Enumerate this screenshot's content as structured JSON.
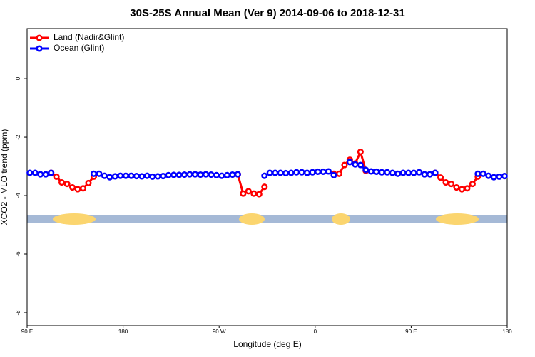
{
  "chart_data": {
    "type": "line",
    "title": "30S-25S Annual Mean (Ver 9)   2014-09-06 to 2018-12-31",
    "x_label": "Longitude (deg E)",
    "y_label": "XCO2 - MLO trend (ppm)",
    "xlim": [
      90,
      540
    ],
    "ylim": [
      -8.44,
      1.71
    ],
    "xticks": [
      {
        "value": 90,
        "label": "90 E"
      },
      180,
      {
        "value": 270,
        "label": "90 W"
      },
      {
        "value": 360,
        "label": "0"
      },
      {
        "value": 450,
        "label": "90 E"
      },
      {
        "value": 540,
        "label": "180"
      }
    ],
    "yticks": [
      0,
      -2,
      -4,
      -6,
      -8
    ],
    "legend": "topleft",
    "x": [
      92.5,
      97.5,
      102.5,
      107.5,
      112.5,
      117.5,
      122.5,
      127.5,
      132.5,
      137.5,
      142.5,
      147.5,
      152.5,
      157.5,
      162.5,
      167.5,
      172.5,
      177.5,
      182.5,
      187.5,
      192.5,
      197.5,
      202.5,
      207.5,
      212.5,
      217.5,
      222.5,
      227.5,
      232.5,
      237.5,
      242.5,
      247.5,
      252.5,
      257.5,
      262.5,
      267.5,
      272.5,
      277.5,
      282.5,
      287.5,
      292.5,
      297.5,
      302.5,
      307.5,
      312.5,
      317.5,
      322.5,
      327.5,
      332.5,
      337.5,
      342.5,
      347.5,
      352.5,
      357.5,
      362.5,
      367.5,
      372.5,
      377.5,
      382.5,
      387.5,
      392.5,
      397.5,
      402.5,
      407.5,
      412.5,
      417.5,
      422.5,
      427.5,
      432.5,
      437.5,
      442.5,
      447.5,
      452.5,
      457.5,
      462.5,
      467.5,
      472.5,
      477.5,
      482.5,
      487.5,
      492.5,
      497.5,
      502.5,
      507.5,
      512.5,
      517.5,
      522.5,
      527.5,
      532.5,
      537.5
    ],
    "series": [
      {
        "name": "Land (Nadir&Glint)",
        "color": "#ff0000",
        "values": [
          null,
          null,
          null,
          null,
          -3.22,
          -3.35,
          -3.55,
          -3.6,
          -3.72,
          -3.78,
          -3.75,
          -3.57,
          -3.35,
          null,
          null,
          null,
          null,
          null,
          null,
          null,
          null,
          null,
          null,
          null,
          null,
          null,
          null,
          null,
          null,
          null,
          null,
          null,
          null,
          null,
          null,
          null,
          null,
          null,
          null,
          -3.27,
          -3.93,
          -3.85,
          -3.93,
          -3.95,
          -3.7,
          null,
          null,
          null,
          null,
          null,
          null,
          null,
          null,
          null,
          null,
          null,
          null,
          -3.25,
          -3.25,
          -2.95,
          -2.77,
          -2.9,
          -2.5,
          -3.15,
          null,
          null,
          null,
          null,
          null,
          null,
          null,
          null,
          null,
          null,
          null,
          null,
          -3.22,
          -3.38,
          -3.55,
          -3.6,
          -3.72,
          -3.78,
          -3.75,
          -3.6,
          -3.35,
          null,
          null,
          null,
          null,
          null
        ]
      },
      {
        "name": "Ocean (Glint)",
        "color": "#0000ff",
        "values": [
          -3.22,
          -3.22,
          -3.27,
          -3.27,
          -3.22,
          null,
          null,
          null,
          null,
          null,
          null,
          null,
          -3.25,
          -3.25,
          -3.32,
          -3.37,
          -3.34,
          -3.32,
          -3.32,
          -3.32,
          -3.33,
          -3.34,
          -3.32,
          -3.35,
          -3.34,
          -3.33,
          -3.3,
          -3.29,
          -3.29,
          -3.28,
          -3.27,
          -3.27,
          -3.28,
          -3.27,
          -3.28,
          -3.3,
          -3.32,
          -3.3,
          -3.28,
          -3.27,
          null,
          null,
          null,
          null,
          -3.32,
          -3.22,
          -3.22,
          -3.22,
          -3.23,
          -3.22,
          -3.2,
          -3.2,
          -3.22,
          -3.2,
          -3.18,
          -3.18,
          -3.17,
          -3.3,
          null,
          null,
          -2.85,
          -2.93,
          -2.95,
          -3.12,
          -3.17,
          -3.18,
          -3.2,
          -3.2,
          -3.22,
          -3.25,
          -3.22,
          -3.22,
          -3.22,
          -3.2,
          -3.27,
          -3.27,
          -3.22,
          null,
          null,
          null,
          null,
          null,
          null,
          null,
          -3.25,
          -3.25,
          -3.32,
          -3.37,
          -3.35,
          -3.33
        ]
      }
    ]
  }
}
